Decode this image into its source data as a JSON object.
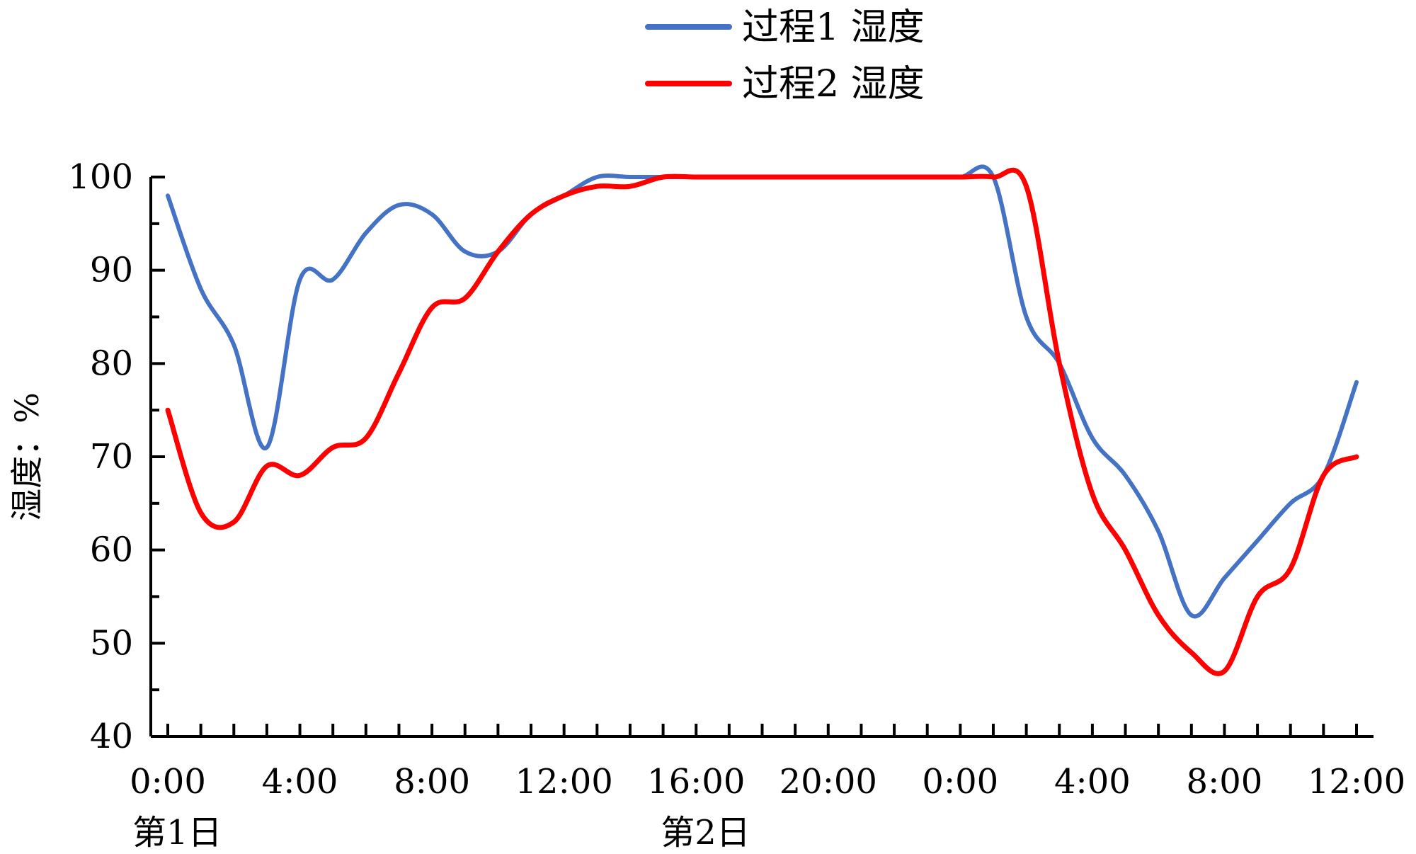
{
  "chart_data": {
    "type": "line",
    "ylabel": "湿度：%",
    "ylim": [
      40,
      100
    ],
    "yticks": [
      40,
      50,
      60,
      70,
      80,
      90,
      100
    ],
    "xlim": [
      0,
      36
    ],
    "xticks": [
      {
        "hour": 0,
        "label": "0:00"
      },
      {
        "hour": 4,
        "label": "4:00"
      },
      {
        "hour": 8,
        "label": "8:00"
      },
      {
        "hour": 12,
        "label": "12:00"
      },
      {
        "hour": 16,
        "label": "16:00"
      },
      {
        "hour": 20,
        "label": "20:00"
      },
      {
        "hour": 24,
        "label": "0:00"
      },
      {
        "hour": 28,
        "label": "4:00"
      },
      {
        "hour": 32,
        "label": "8:00"
      },
      {
        "hour": 36,
        "label": "12:00"
      }
    ],
    "day_labels": [
      {
        "hour": 0,
        "label": "第1日"
      },
      {
        "hour": 16,
        "label": "第2日"
      }
    ],
    "legend_position": "top-center",
    "series": [
      {
        "name": "过程1 湿度",
        "color": "#4472C4",
        "points": [
          [
            0,
            98
          ],
          [
            1,
            88
          ],
          [
            2,
            82
          ],
          [
            3,
            71
          ],
          [
            4,
            89
          ],
          [
            5,
            89
          ],
          [
            6,
            94
          ],
          [
            7,
            97
          ],
          [
            8,
            96
          ],
          [
            9,
            92
          ],
          [
            10,
            92
          ],
          [
            11,
            96
          ],
          [
            12,
            98
          ],
          [
            13,
            100
          ],
          [
            14,
            100
          ],
          [
            15,
            100
          ],
          [
            16,
            100
          ],
          [
            17,
            100
          ],
          [
            18,
            100
          ],
          [
            19,
            100
          ],
          [
            20,
            100
          ],
          [
            21,
            100
          ],
          [
            22,
            100
          ],
          [
            23,
            100
          ],
          [
            24,
            100
          ],
          [
            25,
            100
          ],
          [
            26,
            85
          ],
          [
            27,
            80
          ],
          [
            28,
            72
          ],
          [
            29,
            68
          ],
          [
            30,
            62
          ],
          [
            31,
            53
          ],
          [
            32,
            57
          ],
          [
            33,
            61
          ],
          [
            34,
            65
          ],
          [
            35,
            68
          ],
          [
            36,
            78
          ]
        ]
      },
      {
        "name": "过程2 湿度",
        "color": "#FF0000",
        "points": [
          [
            0,
            75
          ],
          [
            1,
            64
          ],
          [
            2,
            63
          ],
          [
            3,
            69
          ],
          [
            4,
            68
          ],
          [
            5,
            71
          ],
          [
            6,
            72
          ],
          [
            7,
            79
          ],
          [
            8,
            86
          ],
          [
            9,
            87
          ],
          [
            10,
            92
          ],
          [
            11,
            96
          ],
          [
            12,
            98
          ],
          [
            13,
            99
          ],
          [
            14,
            99
          ],
          [
            15,
            100
          ],
          [
            16,
            100
          ],
          [
            17,
            100
          ],
          [
            18,
            100
          ],
          [
            19,
            100
          ],
          [
            20,
            100
          ],
          [
            21,
            100
          ],
          [
            22,
            100
          ],
          [
            23,
            100
          ],
          [
            24,
            100
          ],
          [
            25,
            100
          ],
          [
            26,
            99
          ],
          [
            27,
            80
          ],
          [
            28,
            66
          ],
          [
            29,
            60
          ],
          [
            30,
            53
          ],
          [
            31,
            49
          ],
          [
            32,
            47
          ],
          [
            33,
            55
          ],
          [
            34,
            58
          ],
          [
            35,
            68
          ],
          [
            36,
            70
          ]
        ]
      }
    ]
  }
}
